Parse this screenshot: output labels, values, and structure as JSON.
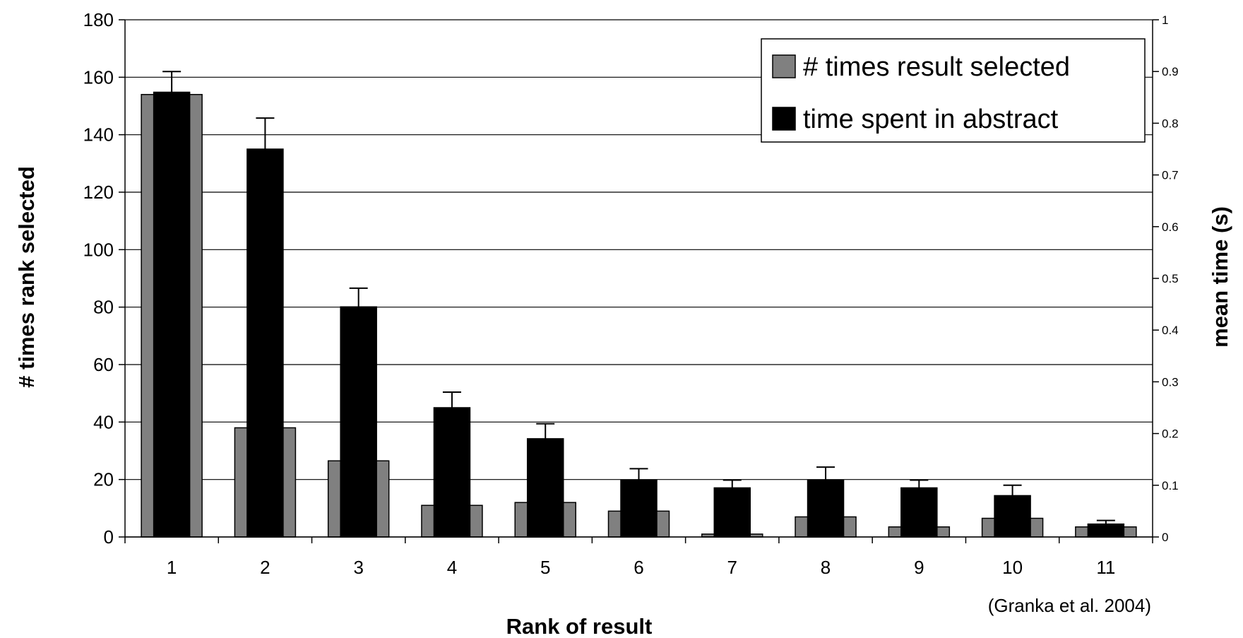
{
  "chart_data": {
    "type": "bar",
    "categories": [
      "1",
      "2",
      "3",
      "4",
      "5",
      "6",
      "7",
      "8",
      "9",
      "10",
      "11"
    ],
    "series": [
      {
        "name": "# times result selected",
        "axis": "left",
        "color": "#808080",
        "values": [
          154,
          38,
          26.5,
          11,
          12,
          9,
          1,
          7,
          3.5,
          6.5,
          3.5
        ]
      },
      {
        "name": "time spent in abstract",
        "axis": "right",
        "color": "#000000",
        "values": [
          0.86,
          0.75,
          0.445,
          0.25,
          0.19,
          0.11,
          0.095,
          0.11,
          0.095,
          0.08,
          0.025
        ],
        "error_plus": [
          0.04,
          0.06,
          0.036,
          0.03,
          0.029,
          0.022,
          0.015,
          0.025,
          0.015,
          0.02,
          0.007
        ]
      }
    ],
    "xlabel": "Rank of result",
    "ylabel": "# times rank selected",
    "y2label": "mean time (s)",
    "ylim": [
      0,
      180
    ],
    "y2lim": [
      0,
      1
    ],
    "yticks": [
      "0",
      "20",
      "40",
      "60",
      "80",
      "100",
      "120",
      "140",
      "160",
      "180"
    ],
    "y2ticks": [
      "0",
      "0.1",
      "0.2",
      "0.3",
      "0.4",
      "0.5",
      "0.6",
      "0.7",
      "0.8",
      "0.9",
      "1"
    ],
    "grid": true,
    "legend_position": "top-right",
    "annotation": "(Granka et al. 2004)"
  }
}
